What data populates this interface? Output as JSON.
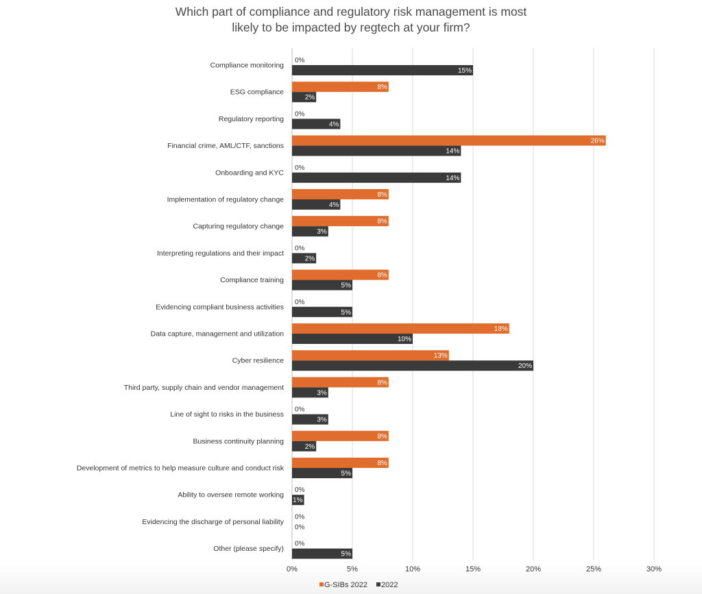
{
  "chart_data": {
    "type": "bar",
    "orientation": "horizontal",
    "title": "Which part of compliance and regulatory risk management is most likely to be impacted by regtech at your firm?",
    "title_lines": [
      "Which part of compliance and regulatory risk management is most",
      "likely to be impacted by regtech at your firm?"
    ],
    "xlabel": "",
    "ylabel": "",
    "xlim": [
      0,
      30
    ],
    "x_ticks": [
      0,
      5,
      10,
      15,
      20,
      25,
      30
    ],
    "x_tick_labels": [
      "0%",
      "5%",
      "10%",
      "15%",
      "20%",
      "25%",
      "30%"
    ],
    "grid": "vertical",
    "legend_position": "bottom-center",
    "categories": [
      "Compliance monitoring",
      "ESG compliance",
      "Regulatory reporting",
      "Financial crime, AML/CTF, sanctions",
      "Onboarding and KYC",
      "Implementation of regulatory change",
      "Capturing regulatory change",
      "Interpreting regulations and their impact",
      "Compliance training",
      "Evidencing compliant business activities",
      "Data capture, management and utilization",
      "Cyber resilience",
      "Third party, supply chain and vendor management",
      "Line of sight to risks in the business",
      "Business continuity planning",
      "Development of metrics to help measure culture and conduct risk",
      "Ability to oversee remote working",
      "Evidencing the discharge of personal liability",
      "Other (please specify)"
    ],
    "series": [
      {
        "name": "G-SIBs 2022",
        "color": "#e06d2d",
        "values": [
          0,
          8,
          0,
          26,
          0,
          8,
          8,
          0,
          8,
          0,
          18,
          13,
          8,
          0,
          8,
          8,
          0,
          0,
          0
        ],
        "labels": [
          "0%",
          "8%",
          "0%",
          "26%",
          "0%",
          "8%",
          "8%",
          "0%",
          "8%",
          "0%",
          "18%",
          "13%",
          "8%",
          "0%",
          "8%",
          "8%",
          "0%",
          "0%",
          "0%"
        ]
      },
      {
        "name": "2022",
        "color": "#3a3a3a",
        "values": [
          15,
          2,
          4,
          14,
          14,
          4,
          3,
          2,
          5,
          5,
          10,
          20,
          3,
          3,
          2,
          5,
          1,
          0,
          5
        ],
        "labels": [
          "15%",
          "2%",
          "4%",
          "14%",
          "14%",
          "4%",
          "3%",
          "2%",
          "5%",
          "5%",
          "10%",
          "20%",
          "3%",
          "3%",
          "2%",
          "5%",
          "1%",
          "0%",
          "5%"
        ]
      }
    ],
    "legend": [
      "G-SIBs 2022",
      "2022"
    ],
    "colors": {
      "grid": "#d9d9d9",
      "axis": "#bfbfbf",
      "zero_label": "#333333",
      "in_bar_label": "#ffffff"
    }
  }
}
